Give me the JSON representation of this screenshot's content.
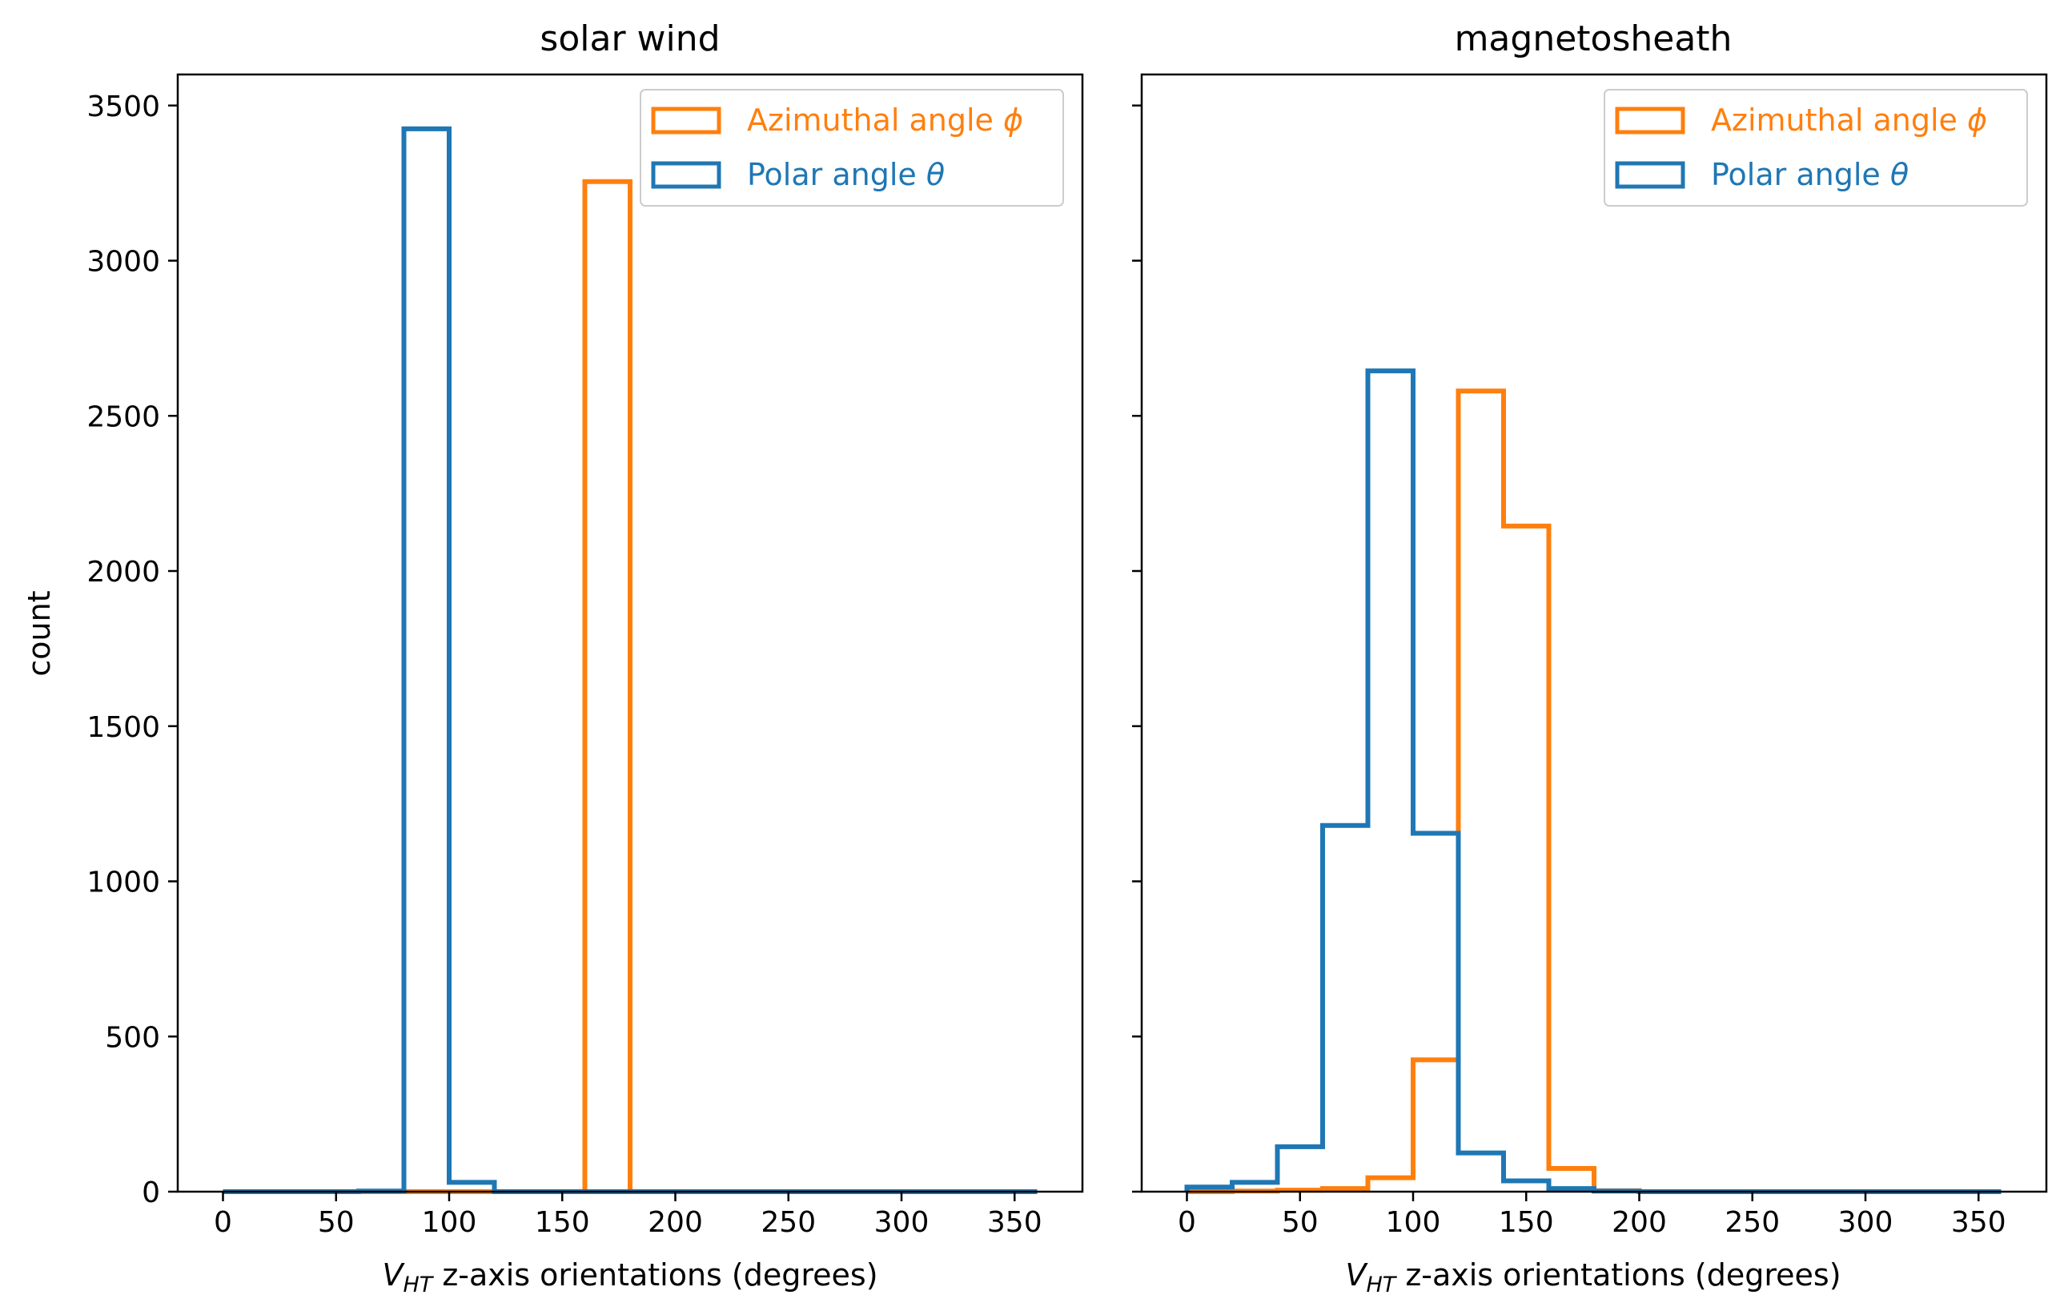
{
  "figure": {
    "ylabel": "count",
    "xlabel_main": "V",
    "xlabel_sub": "HT",
    "xlabel_rest": " z-axis orientations (degrees)"
  },
  "colors": {
    "azimuthal": "#ff7f0e",
    "polar": "#1f77b4",
    "axes": "#000000",
    "background": "#ffffff"
  },
  "legend": {
    "azimuthal_prefix": "Azimuthal angle ",
    "azimuthal_symbol": "ϕ",
    "polar_prefix": "Polar angle ",
    "polar_symbol": "θ",
    "placement": "upper right"
  },
  "chart_data": [
    {
      "type": "histogram",
      "title": "solar wind",
      "xlabel": "V_HT z-axis orientations (degrees)",
      "ylabel": "count",
      "xlim": [
        -20,
        380
      ],
      "ylim": [
        0,
        3600
      ],
      "xticks": [
        0,
        50,
        100,
        150,
        200,
        250,
        300,
        350
      ],
      "yticks": [
        0,
        500,
        1000,
        1500,
        2000,
        2500,
        3000,
        3500
      ],
      "bin_edges": [
        0,
        20,
        40,
        60,
        80,
        100,
        120,
        140,
        160,
        180,
        200,
        220,
        240,
        260,
        280,
        300,
        320,
        340,
        360
      ],
      "series": [
        {
          "name": "Azimuthal angle ϕ",
          "color": "#ff7f0e",
          "counts": [
            0,
            0,
            0,
            0,
            0,
            0,
            0,
            0,
            3255,
            0,
            0,
            0,
            0,
            0,
            0,
            0,
            0,
            0
          ]
        },
        {
          "name": "Polar angle θ",
          "color": "#1f77b4",
          "counts": [
            0,
            0,
            0,
            2,
            3425,
            30,
            0,
            0,
            0,
            0,
            0,
            0,
            0,
            0,
            0,
            0,
            0,
            0
          ]
        }
      ]
    },
    {
      "type": "histogram",
      "title": "magnetosheath",
      "xlabel": "V_HT z-axis orientations (degrees)",
      "ylabel": "",
      "xlim": [
        -20,
        380
      ],
      "ylim": [
        0,
        3600
      ],
      "xticks": [
        0,
        50,
        100,
        150,
        200,
        250,
        300,
        350
      ],
      "yticks": [
        0,
        500,
        1000,
        1500,
        2000,
        2500,
        3000,
        3500
      ],
      "show_ytick_labels": false,
      "bin_edges": [
        0,
        20,
        40,
        60,
        80,
        100,
        120,
        140,
        160,
        180,
        200,
        220,
        240,
        260,
        280,
        300,
        320,
        340,
        360
      ],
      "series": [
        {
          "name": "Azimuthal angle ϕ",
          "color": "#ff7f0e",
          "counts": [
            0,
            2,
            5,
            10,
            45,
            425,
            2580,
            2145,
            75,
            3,
            0,
            0,
            0,
            0,
            0,
            0,
            0,
            0
          ]
        },
        {
          "name": "Polar angle θ",
          "color": "#1f77b4",
          "counts": [
            15,
            30,
            145,
            1180,
            2645,
            1155,
            125,
            35,
            10,
            2,
            0,
            0,
            0,
            0,
            0,
            0,
            0,
            0
          ]
        }
      ]
    }
  ]
}
